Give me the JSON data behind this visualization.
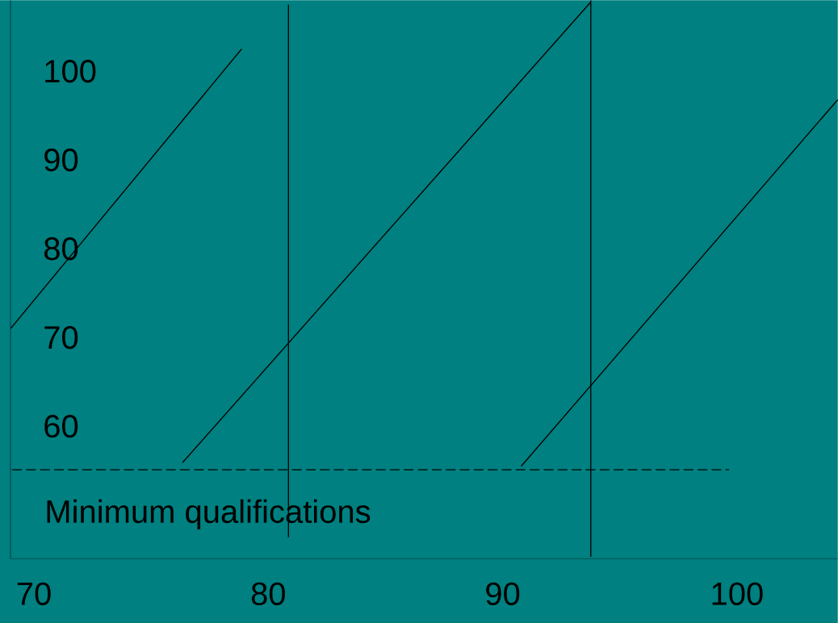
{
  "chart_data": {
    "type": "line",
    "xlim": [
      69,
      104.3
    ],
    "ylim": [
      45.1,
      108
    ],
    "xticks": [
      70,
      80,
      90,
      100
    ],
    "yticks": [
      60,
      70,
      80,
      90,
      100
    ],
    "series": [
      {
        "color": "#000000",
        "x": [
          69.0,
          78.86
        ],
        "values": [
          71.0,
          102.5
        ]
      },
      {
        "color": "#000000",
        "x": [
          76.34,
          93.76
        ],
        "values": [
          55.9,
          107.8
        ]
      },
      {
        "color": "#000000",
        "x": [
          90.79,
          104.3
        ],
        "values": [
          55.5,
          96.8
        ]
      },
      {
        "color": "#000000",
        "x": [
          80.86,
          80.86
        ],
        "values": [
          47.5,
          107.5
        ]
      },
      {
        "color": "#000000",
        "x": [
          93.76,
          93.76
        ],
        "values": [
          45.3,
          108
        ]
      },
      {
        "color": "#000000",
        "x": [
          69.07,
          99.66
        ],
        "values": [
          55.1,
          55.1
        ],
        "line_style": "dashed"
      }
    ],
    "annotations": [
      "Minimum qualifications"
    ]
  }
}
